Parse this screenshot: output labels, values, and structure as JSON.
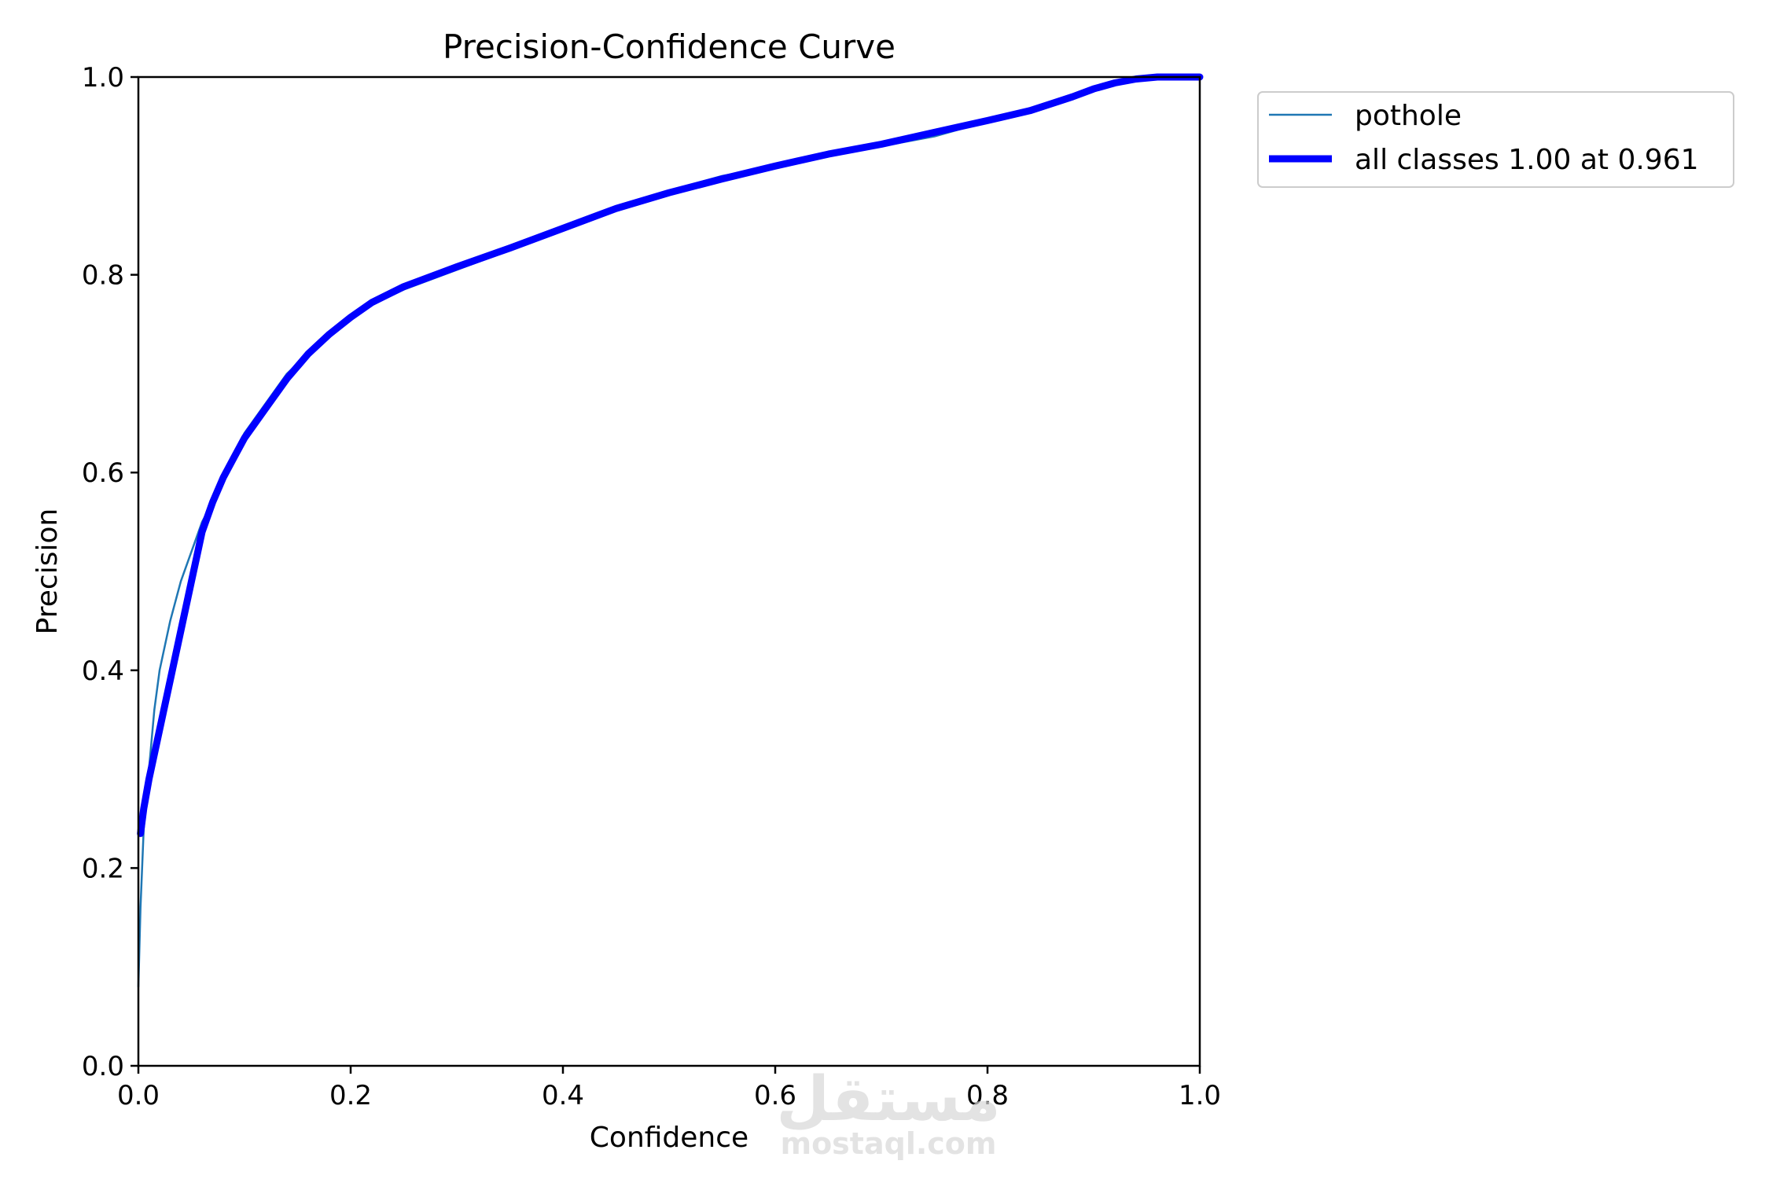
{
  "chart_data": {
    "type": "line",
    "title": "Precision-Confidence Curve",
    "xlabel": "Confidence",
    "ylabel": "Precision",
    "xlim": [
      0.0,
      1.0
    ],
    "ylim": [
      0.0,
      1.0
    ],
    "xticks": [
      "0.0",
      "0.2",
      "0.4",
      "0.6",
      "0.8",
      "1.0"
    ],
    "yticks": [
      "0.0",
      "0.2",
      "0.4",
      "0.6",
      "0.8",
      "1.0"
    ],
    "grid": false,
    "legend_position": "outside-top-right",
    "series": [
      {
        "name": "pothole",
        "color": "#1f77b4",
        "style": "thin",
        "x": [
          0.0,
          0.002,
          0.005,
          0.01,
          0.015,
          0.02,
          0.03,
          0.04,
          0.05,
          0.06,
          0.07,
          0.08,
          0.09,
          0.1,
          0.12,
          0.14,
          0.16,
          0.18,
          0.2,
          0.22,
          0.25,
          0.3,
          0.35,
          0.4,
          0.45,
          0.5,
          0.55,
          0.6,
          0.65,
          0.7,
          0.75,
          0.8,
          0.84,
          0.88,
          0.9,
          0.92,
          0.94,
          0.96,
          0.98,
          1.0
        ],
        "y": [
          0.08,
          0.16,
          0.24,
          0.3,
          0.36,
          0.4,
          0.45,
          0.49,
          0.52,
          0.55,
          0.57,
          0.6,
          0.62,
          0.64,
          0.67,
          0.7,
          0.72,
          0.74,
          0.755,
          0.77,
          0.785,
          0.805,
          0.825,
          0.845,
          0.865,
          0.885,
          0.9,
          0.91,
          0.92,
          0.93,
          0.94,
          0.955,
          0.965,
          0.978,
          0.99,
          0.995,
          1.0,
          1.0,
          1.0,
          1.0
        ]
      },
      {
        "name": "all classes 1.00 at 0.961",
        "color": "#0000ff",
        "style": "thick",
        "x": [
          0.002,
          0.005,
          0.01,
          0.02,
          0.03,
          0.04,
          0.05,
          0.055,
          0.06,
          0.07,
          0.08,
          0.09,
          0.1,
          0.12,
          0.14,
          0.16,
          0.18,
          0.2,
          0.22,
          0.25,
          0.3,
          0.35,
          0.4,
          0.45,
          0.5,
          0.55,
          0.6,
          0.65,
          0.7,
          0.75,
          0.8,
          0.84,
          0.88,
          0.9,
          0.92,
          0.94,
          0.96,
          0.98,
          1.0
        ],
        "y": [
          0.235,
          0.26,
          0.29,
          0.34,
          0.39,
          0.44,
          0.49,
          0.515,
          0.54,
          0.57,
          0.595,
          0.615,
          0.635,
          0.665,
          0.695,
          0.72,
          0.74,
          0.757,
          0.772,
          0.788,
          0.808,
          0.827,
          0.847,
          0.867,
          0.883,
          0.897,
          0.91,
          0.922,
          0.932,
          0.944,
          0.956,
          0.966,
          0.98,
          0.988,
          0.994,
          0.998,
          1.0,
          1.0,
          1.0
        ]
      }
    ]
  },
  "watermark": {
    "arabic_text": "مستقل",
    "latin_text": "mostaql.com"
  }
}
